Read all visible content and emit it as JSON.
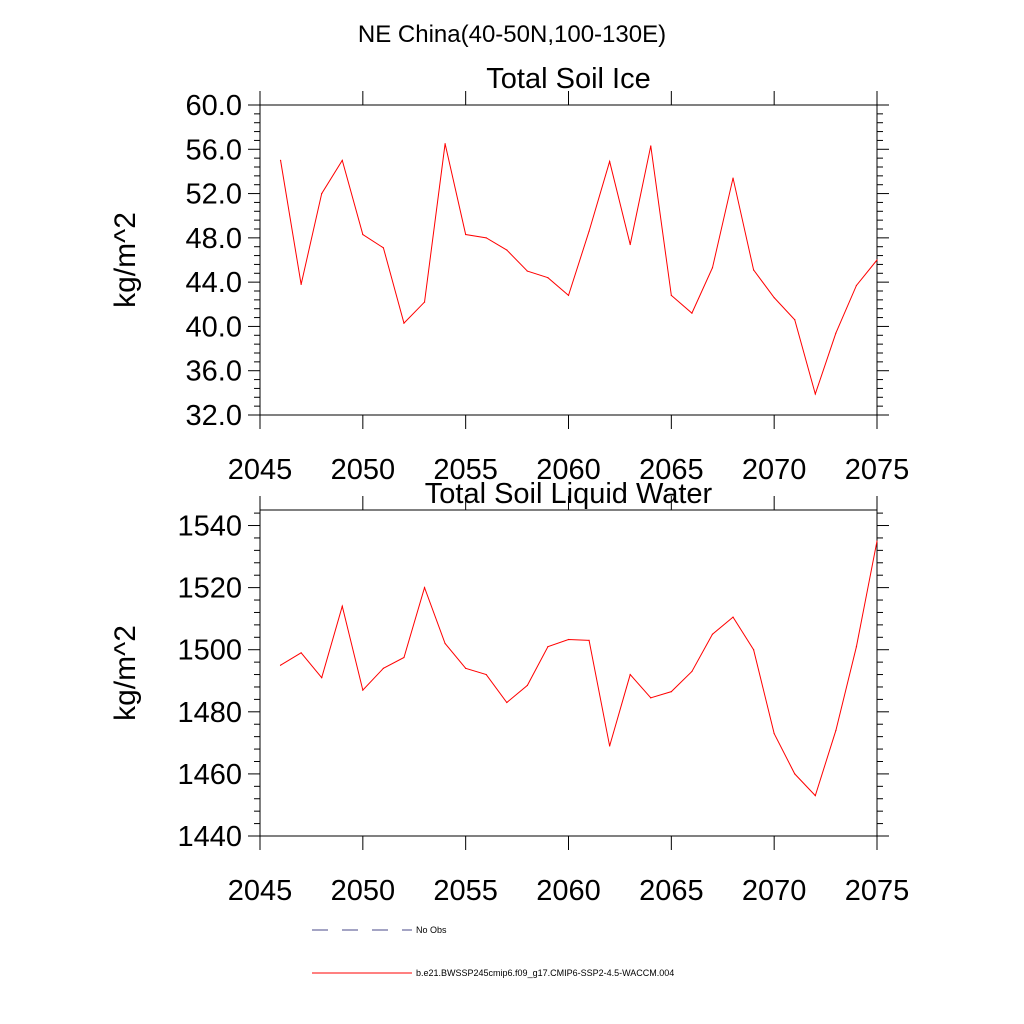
{
  "title": "NE China(40-50N,100-130E)",
  "legend": {
    "placement": "bottom",
    "items": [
      {
        "label": "No Obs",
        "color": "#4a4a8a",
        "dash": true
      },
      {
        "label": "b.e21.BWSSP245cmip6.f09_g17.CMIP6-SSP2-4.5-WACCM.004",
        "color": "#ff0000",
        "dash": false
      }
    ]
  },
  "chart_data": [
    {
      "type": "line",
      "title": "Total Soil Ice",
      "xlabel": "",
      "ylabel": "kg/m^2",
      "xlim": [
        2045,
        2075
      ],
      "ylim": [
        32,
        60
      ],
      "grid": false,
      "xticks": [
        "2045",
        "2050",
        "2055",
        "2060",
        "2065",
        "2070",
        "2075"
      ],
      "yticks": [
        "32.0",
        "36.0",
        "40.0",
        "44.0",
        "48.0",
        "52.0",
        "56.0",
        "60.0"
      ],
      "series": [
        {
          "name": "b.e21.BWSSP245cmip6.f09_g17.CMIP6-SSP2-4.5-WACCM.004",
          "color": "#ff0000",
          "x": [
            2046,
            2047,
            2048,
            2049,
            2050,
            2051,
            2052,
            2053,
            2054,
            2055,
            2056,
            2057,
            2058,
            2059,
            2060,
            2061,
            2062,
            2063,
            2064,
            2065,
            2066,
            2067,
            2068,
            2069,
            2070,
            2071,
            2072,
            2073,
            2074,
            2075
          ],
          "y": [
            55.0,
            43.8,
            52.0,
            55.0,
            48.3,
            47.1,
            40.3,
            42.2,
            56.5,
            48.3,
            48.0,
            46.9,
            45.0,
            44.4,
            42.8,
            48.6,
            54.9,
            47.4,
            56.3,
            42.8,
            41.2,
            45.3,
            53.4,
            45.1,
            42.6,
            40.6,
            33.9,
            39.4,
            43.7,
            46.0
          ]
        }
      ]
    },
    {
      "type": "line",
      "title": "Total Soil Liquid Water",
      "xlabel": "",
      "ylabel": "kg/m^2",
      "xlim": [
        2045,
        2075
      ],
      "ylim": [
        1440,
        1545
      ],
      "grid": false,
      "xticks": [
        "2045",
        "2050",
        "2055",
        "2060",
        "2065",
        "2070",
        "2075"
      ],
      "yticks": [
        "1440",
        "1460",
        "1480",
        "1500",
        "1520",
        "1540"
      ],
      "series": [
        {
          "name": "b.e21.BWSSP245cmip6.f09_g17.CMIP6-SSP2-4.5-WACCM.004",
          "color": "#ff0000",
          "x": [
            2046,
            2047,
            2048,
            2049,
            2050,
            2051,
            2052,
            2053,
            2054,
            2055,
            2056,
            2057,
            2058,
            2059,
            2060,
            2061,
            2062,
            2063,
            2064,
            2065,
            2066,
            2067,
            2068,
            2069,
            2070,
            2071,
            2072,
            2073,
            2074,
            2075
          ],
          "y": [
            1495,
            1499,
            1491,
            1514,
            1487,
            1494,
            1497.5,
            1520,
            1502,
            1494,
            1492,
            1483,
            1488.5,
            1501,
            1503.3,
            1503,
            1469,
            1492,
            1484.5,
            1486.5,
            1493,
            1505,
            1510.5,
            1500,
            1473,
            1460,
            1453,
            1474,
            1501,
            1535
          ]
        }
      ]
    }
  ]
}
